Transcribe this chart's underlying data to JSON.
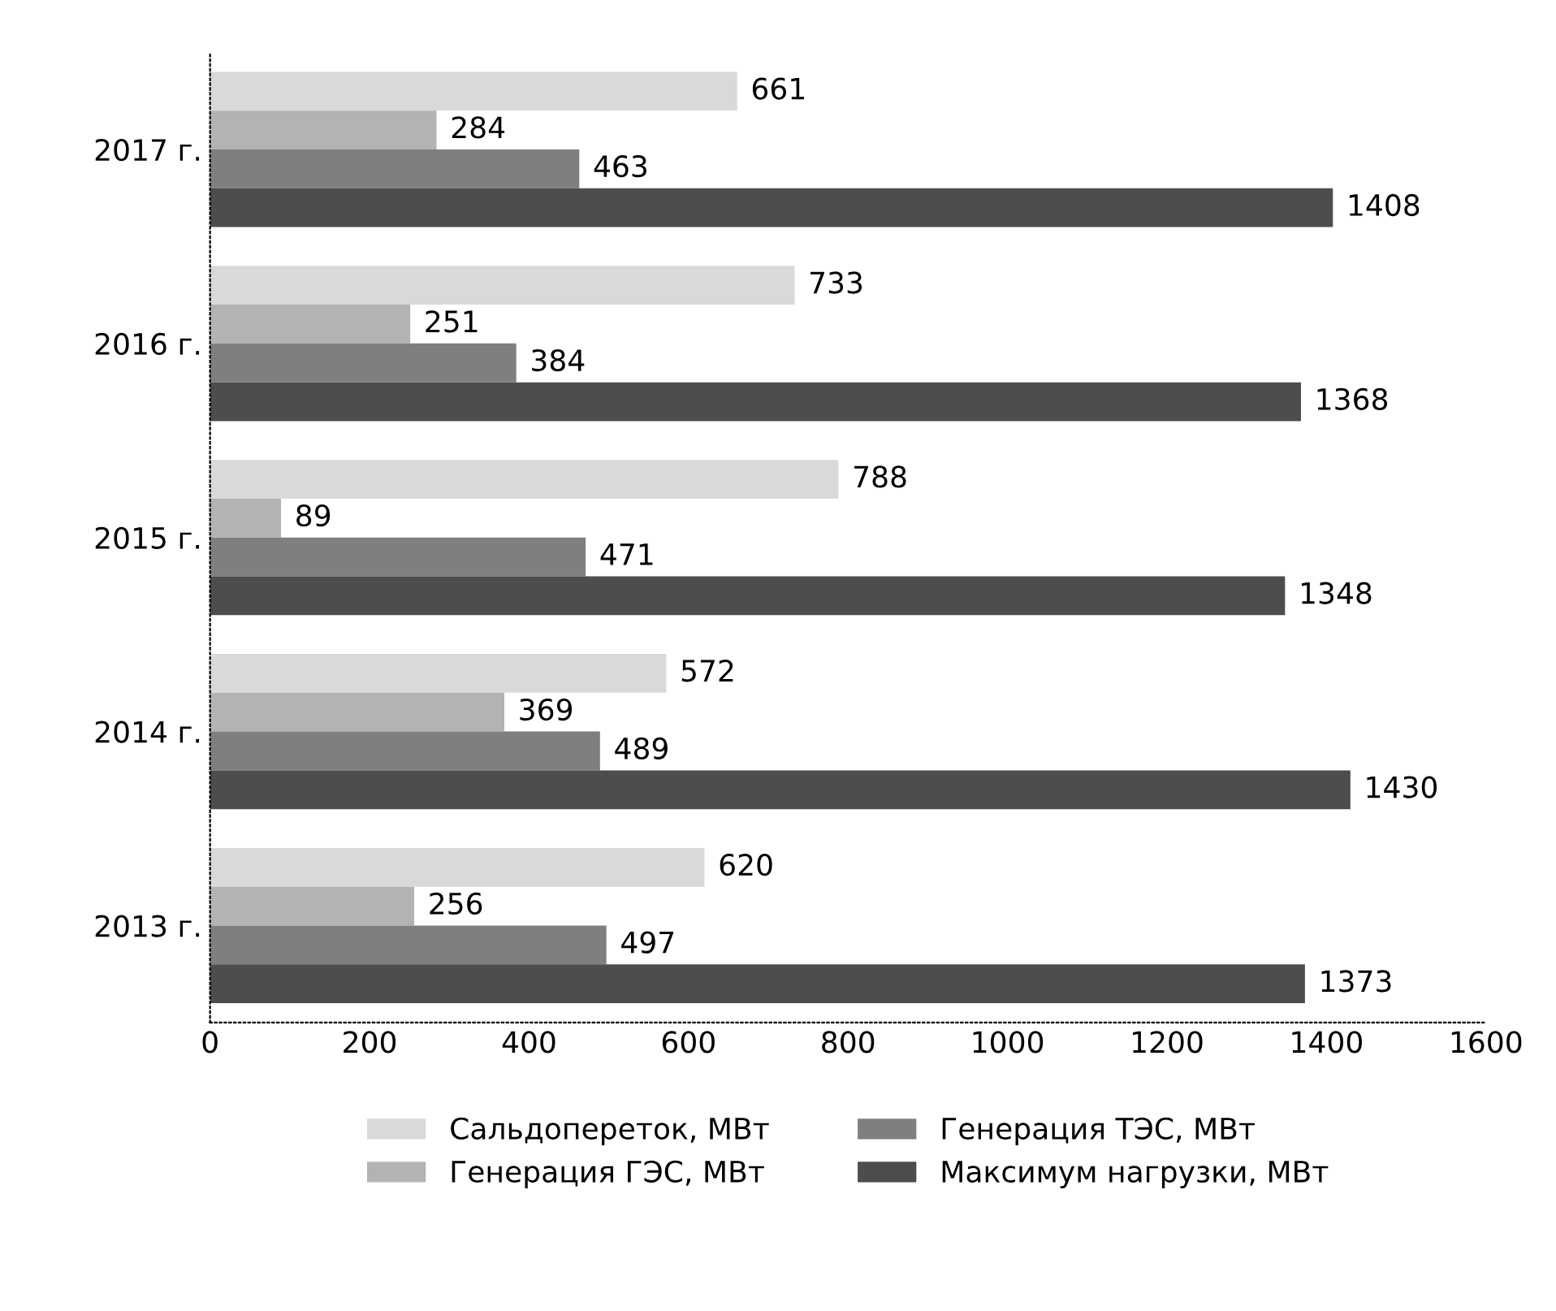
{
  "chart_data": {
    "type": "bar",
    "orientation": "horizontal",
    "categories": [
      "2017 г.",
      "2016 г.",
      "2015 г.",
      "2014 г.",
      "2013 г."
    ],
    "series": [
      {
        "name": "Сальдопереток, МВт",
        "color": "#d9d9d9",
        "values": [
          661,
          733,
          788,
          572,
          620
        ]
      },
      {
        "name": "Генерация ГЭС, МВт",
        "color": "#b3b3b3",
        "values": [
          284,
          251,
          89,
          369,
          256
        ]
      },
      {
        "name": "Генерация ТЭС, МВт",
        "color": "#7f7f7f",
        "values": [
          463,
          384,
          471,
          489,
          497
        ]
      },
      {
        "name": "Максимум нагрузки, МВт",
        "color": "#4d4d4d",
        "values": [
          1408,
          1368,
          1348,
          1430,
          1373
        ]
      }
    ],
    "xlim": [
      0,
      1600
    ],
    "xticks": [
      0,
      200,
      400,
      600,
      800,
      1000,
      1200,
      1400,
      1600
    ],
    "data_labels": true,
    "grid": false,
    "legend": "bottom"
  }
}
